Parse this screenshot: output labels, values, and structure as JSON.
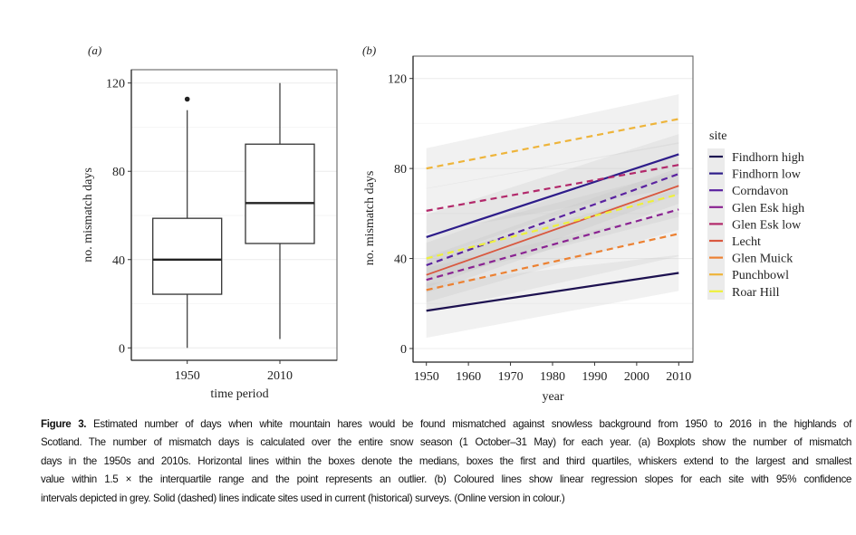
{
  "chart_data": [
    {
      "type": "box",
      "panel_label": "(a)",
      "xlabel": "time period",
      "ylabel": "no. mismatch days",
      "ylim": [
        -5,
        127
      ],
      "yticks": [
        "0",
        "40",
        "80",
        "120"
      ],
      "ytick_values": [
        0,
        40,
        80,
        120
      ],
      "categories": [
        "1950",
        "2010"
      ],
      "boxes": [
        {
          "category": "1950",
          "min": 0,
          "q1": 24.3,
          "median": 40,
          "q3": 58.7,
          "max": 107.7,
          "outliers": [
            112.7
          ]
        },
        {
          "category": "2010",
          "min": 4,
          "q1": 47.3,
          "median": 65.6,
          "q3": 92.3,
          "max": 120,
          "outliers": []
        }
      ],
      "grid": true
    },
    {
      "type": "line",
      "panel_label": "(b)",
      "xlabel": "year",
      "ylabel": "no. mismatch days",
      "xlim": [
        1947,
        2013
      ],
      "ylim": [
        -5,
        127
      ],
      "xticks": [
        "1950",
        "1960",
        "1970",
        "1980",
        "1990",
        "2000",
        "2010"
      ],
      "xtick_values": [
        1950,
        1960,
        1970,
        1980,
        1990,
        2000,
        2010
      ],
      "yticks": [
        "0",
        "40",
        "80",
        "120"
      ],
      "ytick_values": [
        0,
        40,
        80,
        120
      ],
      "legend_title": "site",
      "legend_position": "right",
      "grid": true,
      "series": [
        {
          "name": "Findhorn high",
          "color": "#1d1150",
          "dashed": false,
          "x": [
            1950,
            2010
          ],
          "y": [
            16.8,
            33.6
          ],
          "ci": [
            12,
            8
          ]
        },
        {
          "name": "Findhorn low",
          "color": "#2e1d8a",
          "dashed": false,
          "x": [
            1950,
            2010
          ],
          "y": [
            49.5,
            86.3
          ],
          "ci": [
            10,
            9
          ]
        },
        {
          "name": "Corndavon",
          "color": "#5a22a0",
          "dashed": true,
          "x": [
            1950,
            2010
          ],
          "y": [
            37,
            77.6
          ],
          "ci": [
            10,
            9
          ]
        },
        {
          "name": "Glen Esk high",
          "color": "#8a2392",
          "dashed": true,
          "x": [
            1950,
            2010
          ],
          "y": [
            30.5,
            61.8
          ],
          "ci": [
            10,
            9
          ]
        },
        {
          "name": "Glen Esk low",
          "color": "#b2286a",
          "dashed": true,
          "x": [
            1950,
            2010
          ],
          "y": [
            61.2,
            81.6
          ],
          "ci": [
            10,
            10
          ]
        },
        {
          "name": "Lecht",
          "color": "#d9583f",
          "dashed": false,
          "x": [
            1950,
            2010
          ],
          "y": [
            32.7,
            72.3
          ],
          "ci": [
            8,
            8
          ]
        },
        {
          "name": "Glen Muick",
          "color": "#ec8132",
          "dashed": true,
          "x": [
            1950,
            2010
          ],
          "y": [
            26,
            51
          ],
          "ci": [
            10,
            10
          ]
        },
        {
          "name": "Punchbowl",
          "color": "#eeb43a",
          "dashed": true,
          "x": [
            1950,
            2010
          ],
          "y": [
            80,
            102
          ],
          "ci": [
            9,
            11
          ]
        },
        {
          "name": "Roar Hill",
          "color": "#eef03c",
          "dashed": true,
          "x": [
            1950,
            2010
          ],
          "y": [
            40,
            68.5
          ],
          "ci": [
            10,
            10
          ]
        }
      ]
    }
  ],
  "caption": {
    "label": "Figure 3.",
    "lines": [
      " Estimated number of days when white mountain hares would be found mismatched against snowless background from 1950 to 2016 in the highlands of",
      "Scotland. The number of mismatch days is calculated over the entire snow season (1 October–31 May) for each year. (a) Boxplots show the number of mismatch",
      "days in the 1950s and 2010s. Horizontal lines within the boxes denote the medians, boxes the first and third quartiles, whiskers extend to the largest and smallest",
      "value within 1.5 × the interquartile range and the point represents an outlier. (b) Coloured lines show linear regression slopes for each site with 95% confidence",
      "intervals depicted in grey. Solid (dashed) lines indicate sites used in current (historical) surveys. (Online version in colour.)"
    ]
  }
}
